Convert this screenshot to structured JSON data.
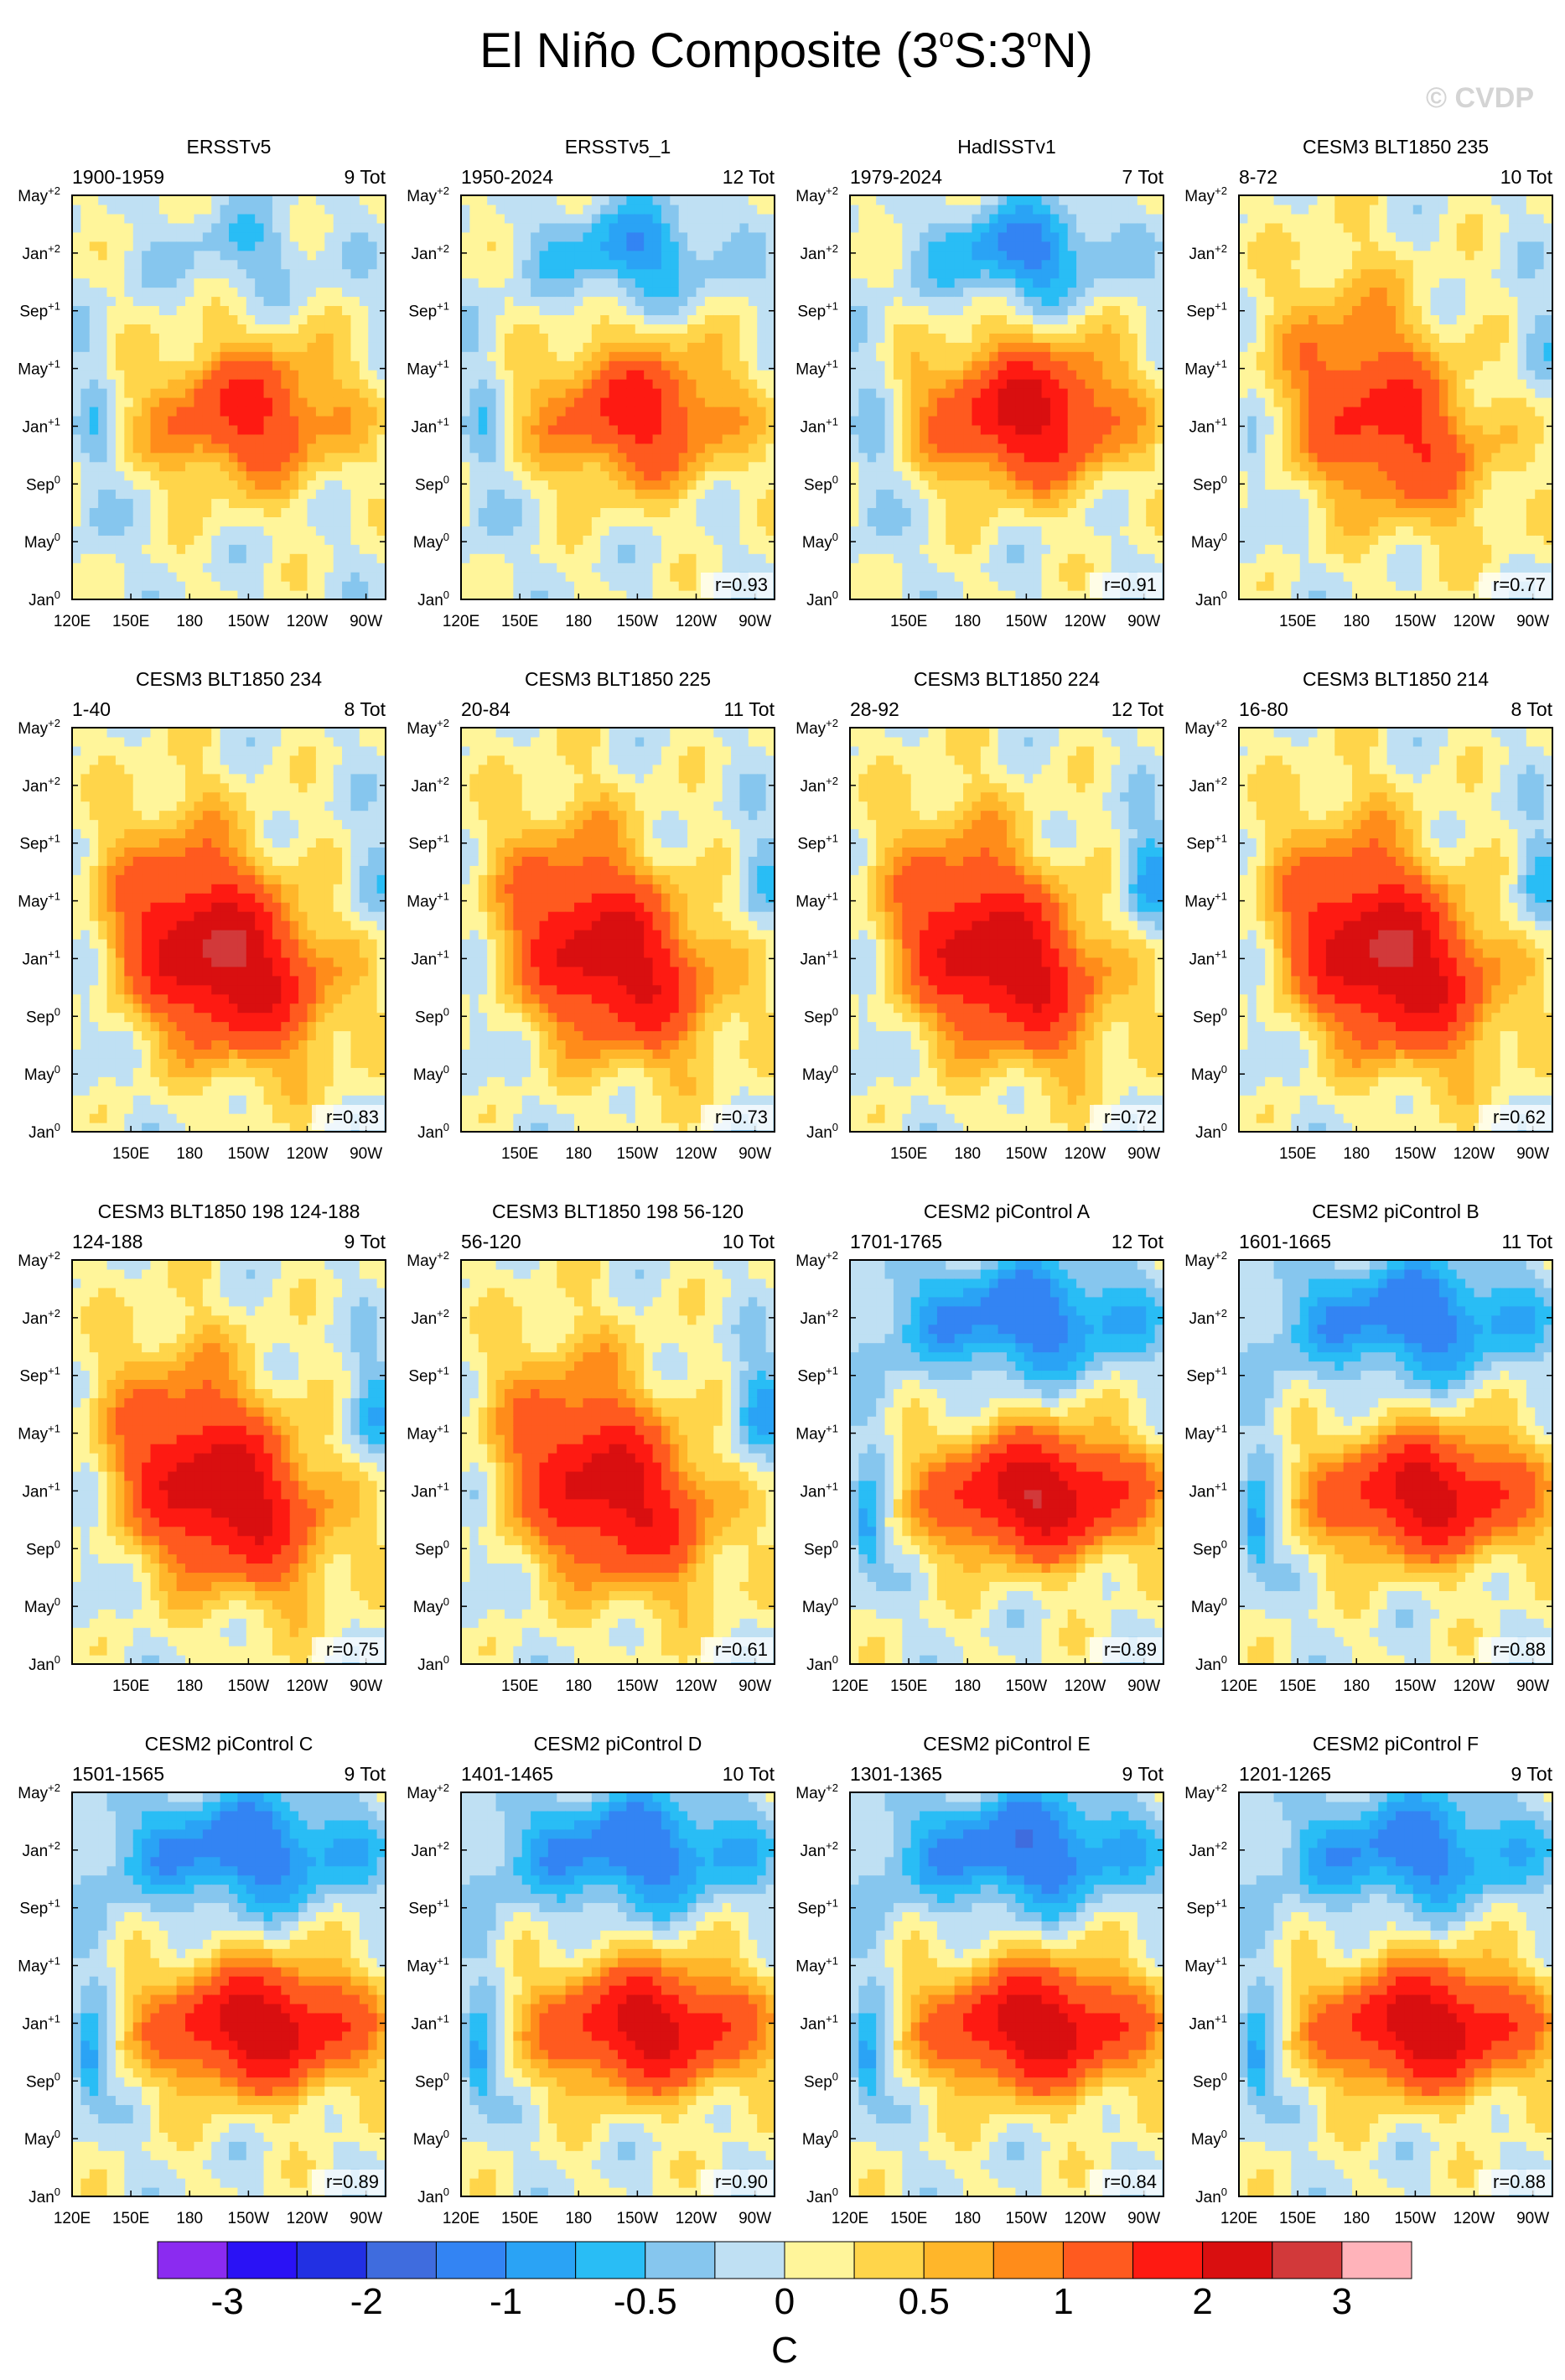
{
  "figure": {
    "title_prefix": "El Niño Composite (3",
    "title_s": "S:3",
    "title_n": "N)",
    "title_deg": "o",
    "watermark": "© CVDP"
  },
  "chart_data": {
    "type": "heatmap",
    "units": "C",
    "y_ticks": [
      "Jan",
      "May",
      "Sep",
      "Jan",
      "May",
      "Sep",
      "Jan",
      "May"
    ],
    "y_tick_sups": [
      "0",
      "0",
      "0",
      "+1",
      "+1",
      "+1",
      "+2",
      "+2"
    ],
    "colorbar": {
      "levels": [
        -3,
        -2.5,
        -2,
        -1.5,
        -1,
        -0.75,
        -0.5,
        -0.25,
        0,
        0.25,
        0.5,
        0.75,
        1,
        1.5,
        2,
        2.5,
        3
      ],
      "labels": [
        "-3",
        "-2",
        "-1",
        "-0.5",
        "0",
        "0.5",
        "1",
        "2",
        "3"
      ],
      "label_levels": [
        -3,
        -2,
        -1,
        -0.5,
        0,
        0.5,
        1,
        2,
        3
      ],
      "colors": [
        "#8b2bf0",
        "#2a12f5",
        "#2230e3",
        "#3f6cde",
        "#3384f3",
        "#2aa3f5",
        "#29bdf5",
        "#86c6ee",
        "#bfe0f3",
        "#fff59a",
        "#ffd54a",
        "#ffb62a",
        "#ff8c1a",
        "#ff5a1f",
        "#fe1a12",
        "#d90f10",
        "#d2393a",
        "#ffb3ba"
      ]
    },
    "panels": [
      {
        "name": "ERSSTv5",
        "period": "1900-1959",
        "count": "9 Tot",
        "r": "",
        "x_ticks": [
          "120E",
          "150E",
          "180",
          "150W",
          "120W",
          "90W"
        ],
        "pattern": "obs",
        "amp": 1.6,
        "neg": 0.4
      },
      {
        "name": "ERSSTv5_1",
        "period": "1950-2024",
        "count": "12 Tot",
        "r": "r=0.93",
        "x_ticks": [
          "120E",
          "150E",
          "180",
          "150W",
          "120W",
          "90W"
        ],
        "pattern": "obs",
        "amp": 1.7,
        "neg": 0.9
      },
      {
        "name": "HadISSTv1",
        "period": "1979-2024",
        "count": "7 Tot",
        "r": "r=0.91",
        "x_ticks": [
          "150E",
          "180",
          "150W",
          "120W",
          "90W"
        ],
        "pattern": "obs",
        "amp": 2.2,
        "neg": 1.1
      },
      {
        "name": "CESM3 BLT1850 235",
        "period": "8-72",
        "count": "10 Tot",
        "r": "r=0.77",
        "x_ticks": [
          "150E",
          "180",
          "150W",
          "120W",
          "90W"
        ],
        "pattern": "cesm3",
        "amp": 1.6,
        "neg": 0.3
      },
      {
        "name": "CESM3 BLT1850 234",
        "period": "1-40",
        "count": "8 Tot",
        "r": "r=0.83",
        "x_ticks": [
          "150E",
          "180",
          "150W",
          "120W",
          "90W"
        ],
        "pattern": "cesm3",
        "amp": 2.6,
        "neg": 0.3
      },
      {
        "name": "CESM3 BLT1850 225",
        "period": "20-84",
        "count": "11 Tot",
        "r": "r=0.73",
        "x_ticks": [
          "150E",
          "180",
          "150W",
          "120W",
          "90W"
        ],
        "pattern": "cesm3",
        "amp": 2.3,
        "neg": 0.4
      },
      {
        "name": "CESM3 BLT1850 224",
        "period": "28-92",
        "count": "12 Tot",
        "r": "r=0.72",
        "x_ticks": [
          "150E",
          "180",
          "150W",
          "120W",
          "90W"
        ],
        "pattern": "cesm3",
        "amp": 2.4,
        "neg": 0.8
      },
      {
        "name": "CESM3 BLT1850 214",
        "period": "16-80",
        "count": "8 Tot",
        "r": "r=0.62",
        "x_ticks": [
          "150E",
          "180",
          "150W",
          "120W",
          "90W"
        ],
        "pattern": "cesm3",
        "amp": 2.6,
        "neg": 0.5
      },
      {
        "name": "CESM3 BLT1850 198 124-188",
        "period": "124-188",
        "count": "9 Tot",
        "r": "r=0.75",
        "x_ticks": [
          "150E",
          "180",
          "150W",
          "120W",
          "90W"
        ],
        "pattern": "cesm3",
        "amp": 2.4,
        "neg": 0.6
      },
      {
        "name": "CESM3 BLT1850 198 56-120",
        "period": "56-120",
        "count": "10 Tot",
        "r": "r=0.61",
        "x_ticks": [
          "150E",
          "180",
          "150W",
          "120W",
          "90W"
        ],
        "pattern": "cesm3",
        "amp": 2.2,
        "neg": 0.8
      },
      {
        "name": "CESM2 piControl A",
        "period": "1701-1765",
        "count": "12 Tot",
        "r": "r=0.89",
        "x_ticks": [
          "120E",
          "150E",
          "180",
          "150W",
          "120W",
          "90W"
        ],
        "pattern": "cesm2",
        "amp": 2.5,
        "neg": 1.3
      },
      {
        "name": "CESM2 piControl B",
        "period": "1601-1665",
        "count": "11 Tot",
        "r": "r=0.88",
        "x_ticks": [
          "120E",
          "150E",
          "180",
          "150W",
          "120W",
          "90W"
        ],
        "pattern": "cesm2",
        "amp": 2.3,
        "neg": 1.3
      },
      {
        "name": "CESM2 piControl C",
        "period": "1501-1565",
        "count": "9 Tot",
        "r": "r=0.89",
        "x_ticks": [
          "120E",
          "150E",
          "180",
          "150W",
          "120W",
          "90W"
        ],
        "pattern": "cesm2",
        "amp": 2.4,
        "neg": 1.3
      },
      {
        "name": "CESM2 piControl D",
        "period": "1401-1465",
        "count": "10 Tot",
        "r": "r=0.90",
        "x_ticks": [
          "120E",
          "150E",
          "180",
          "150W",
          "120W",
          "90W"
        ],
        "pattern": "cesm2",
        "amp": 2.3,
        "neg": 1.3
      },
      {
        "name": "CESM2 piControl E",
        "period": "1301-1365",
        "count": "9 Tot",
        "r": "r=0.84",
        "x_ticks": [
          "120E",
          "150E",
          "180",
          "150W",
          "120W",
          "90W"
        ],
        "pattern": "cesm2",
        "amp": 2.4,
        "neg": 1.4
      },
      {
        "name": "CESM2 piControl F",
        "period": "1201-1265",
        "count": "9 Tot",
        "r": "r=0.88",
        "x_ticks": [
          "120E",
          "150E",
          "180",
          "150W",
          "120W",
          "90W"
        ],
        "pattern": "cesm2",
        "amp": 2.4,
        "neg": 1.2
      }
    ]
  }
}
